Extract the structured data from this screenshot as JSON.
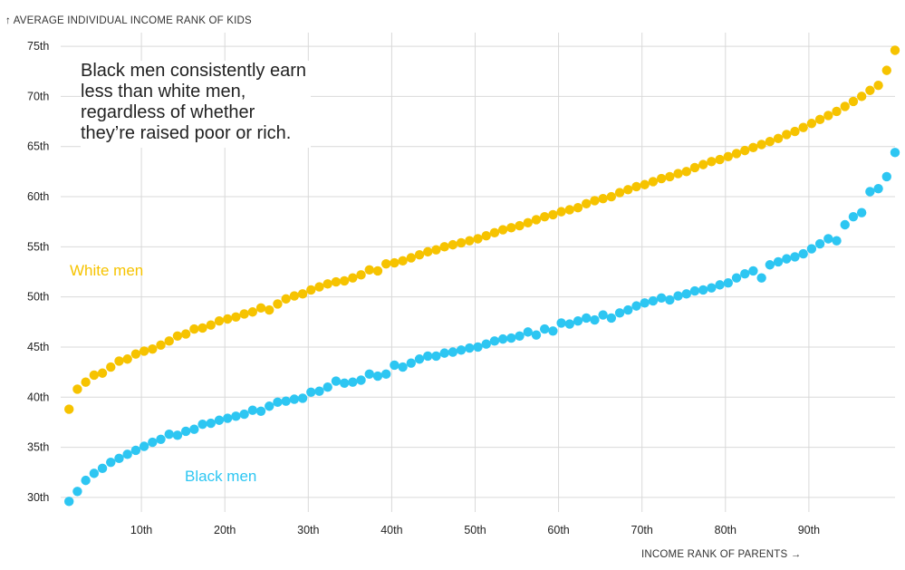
{
  "chart_data": {
    "type": "scatter",
    "title": "↑ AVERAGE INDIVIDUAL INCOME RANK OF KIDS",
    "xlabel": "INCOME RANK OF PARENTS →",
    "ylabel": "AVERAGE INDIVIDUAL INCOME RANK OF KIDS",
    "xlim": [
      0,
      100
    ],
    "ylim": [
      29,
      76
    ],
    "grid": true,
    "x_ticks": [
      10,
      20,
      30,
      40,
      50,
      60,
      70,
      80,
      90
    ],
    "x_tick_labels": [
      "10th",
      "20th",
      "30th",
      "40th",
      "50th",
      "60th",
      "70th",
      "80th",
      "90th"
    ],
    "y_ticks": [
      30,
      35,
      40,
      45,
      50,
      55,
      60,
      65,
      70,
      75
    ],
    "y_tick_labels": [
      "30th",
      "35th",
      "40th",
      "45th",
      "50th",
      "55th",
      "60th",
      "65th",
      "70th",
      "75th"
    ],
    "annotation": "Black men consistently earn less than white men, regardless of whether they’re raised poor or rich.",
    "x": [
      1,
      2,
      3,
      4,
      5,
      6,
      7,
      8,
      9,
      10,
      11,
      12,
      13,
      14,
      15,
      16,
      17,
      18,
      19,
      20,
      21,
      22,
      23,
      24,
      25,
      26,
      27,
      28,
      29,
      30,
      31,
      32,
      33,
      34,
      35,
      36,
      37,
      38,
      39,
      40,
      41,
      42,
      43,
      44,
      45,
      46,
      47,
      48,
      49,
      50,
      51,
      52,
      53,
      54,
      55,
      56,
      57,
      58,
      59,
      60,
      61,
      62,
      63,
      64,
      65,
      66,
      67,
      68,
      69,
      70,
      71,
      72,
      73,
      74,
      75,
      76,
      77,
      78,
      79,
      80,
      81,
      82,
      83,
      84,
      85,
      86,
      87,
      88,
      89,
      90,
      91,
      92,
      93,
      94,
      95,
      96,
      97,
      98,
      99,
      100
    ],
    "series": [
      {
        "name": "White men",
        "color": "#F6C300",
        "values": [
          38.8,
          40.8,
          41.5,
          42.2,
          42.4,
          43.0,
          43.6,
          43.8,
          44.3,
          44.6,
          44.8,
          45.2,
          45.6,
          46.1,
          46.3,
          46.8,
          46.9,
          47.2,
          47.6,
          47.8,
          48.0,
          48.3,
          48.5,
          48.9,
          48.7,
          49.3,
          49.8,
          50.1,
          50.3,
          50.7,
          51.0,
          51.3,
          51.5,
          51.6,
          51.9,
          52.2,
          52.7,
          52.6,
          53.3,
          53.4,
          53.6,
          53.9,
          54.2,
          54.5,
          54.7,
          55.0,
          55.2,
          55.4,
          55.6,
          55.8,
          56.1,
          56.4,
          56.7,
          56.9,
          57.1,
          57.4,
          57.7,
          58.0,
          58.2,
          58.5,
          58.7,
          58.9,
          59.3,
          59.6,
          59.8,
          60.0,
          60.4,
          60.7,
          61.0,
          61.2,
          61.5,
          61.8,
          62.0,
          62.3,
          62.5,
          62.9,
          63.2,
          63.5,
          63.7,
          64.0,
          64.3,
          64.6,
          64.9,
          65.2,
          65.5,
          65.8,
          66.2,
          66.5,
          66.9,
          67.3,
          67.7,
          68.1,
          68.5,
          69.0,
          69.5,
          70.0,
          70.6,
          71.1,
          72.6,
          74.6
        ]
      },
      {
        "name": "Black men",
        "color": "#2DC6F2",
        "values": [
          29.6,
          30.6,
          31.7,
          32.4,
          32.9,
          33.5,
          33.9,
          34.3,
          34.7,
          35.1,
          35.5,
          35.8,
          36.3,
          36.2,
          36.6,
          36.8,
          37.3,
          37.4,
          37.7,
          37.9,
          38.1,
          38.3,
          38.7,
          38.6,
          39.1,
          39.5,
          39.6,
          39.8,
          39.9,
          40.5,
          40.6,
          41.0,
          41.6,
          41.4,
          41.5,
          41.7,
          42.3,
          42.1,
          42.3,
          43.2,
          43.0,
          43.4,
          43.8,
          44.1,
          44.1,
          44.4,
          44.5,
          44.7,
          44.9,
          45.0,
          45.3,
          45.6,
          45.8,
          45.9,
          46.1,
          46.5,
          46.2,
          46.8,
          46.6,
          47.4,
          47.3,
          47.6,
          47.9,
          47.7,
          48.2,
          47.9,
          48.4,
          48.7,
          49.1,
          49.4,
          49.6,
          49.9,
          49.7,
          50.1,
          50.3,
          50.6,
          50.7,
          50.9,
          51.2,
          51.4,
          51.9,
          52.3,
          52.6,
          51.9,
          53.2,
          53.5,
          53.8,
          54.0,
          54.3,
          54.8,
          55.3,
          55.8,
          55.6,
          57.2,
          58.0,
          58.4,
          60.5,
          60.8,
          62.0,
          64.4
        ]
      }
    ],
    "annotations": []
  }
}
